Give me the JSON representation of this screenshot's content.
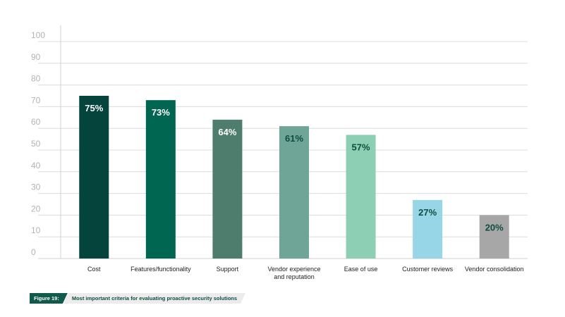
{
  "chart_data": {
    "type": "bar",
    "categories": [
      "Cost",
      "Features/functionality",
      "Support",
      [
        "Vendor experience",
        "and reputation"
      ],
      "Ease of use",
      "Customer reviews",
      "Vendor consolidation"
    ],
    "values": [
      75,
      73,
      64,
      61,
      57,
      27,
      20
    ],
    "value_labels": [
      "75%",
      "73%",
      "64%",
      "61%",
      "57%",
      "27%",
      "20%"
    ],
    "colors": [
      "#04443d",
      "#006651",
      "#4f7d6d",
      "#6ea597",
      "#8dcfb4",
      "#97d6e6",
      "#a7a7a7"
    ],
    "label_colors": [
      "#ffffff",
      "#ffffff",
      "#ffffff",
      "#0f4d40",
      "#0f4d40",
      "#0f4d40",
      "#0f4d40"
    ],
    "ylim": [
      0,
      100
    ],
    "yticks": [
      0,
      10,
      20,
      30,
      40,
      50,
      60,
      70,
      80,
      90,
      100
    ],
    "grid": true,
    "xlabel": "",
    "ylabel": ""
  },
  "caption": {
    "tag": "Figure 19:",
    "text": "Most important criteria for evaluating proactive security solutions"
  }
}
